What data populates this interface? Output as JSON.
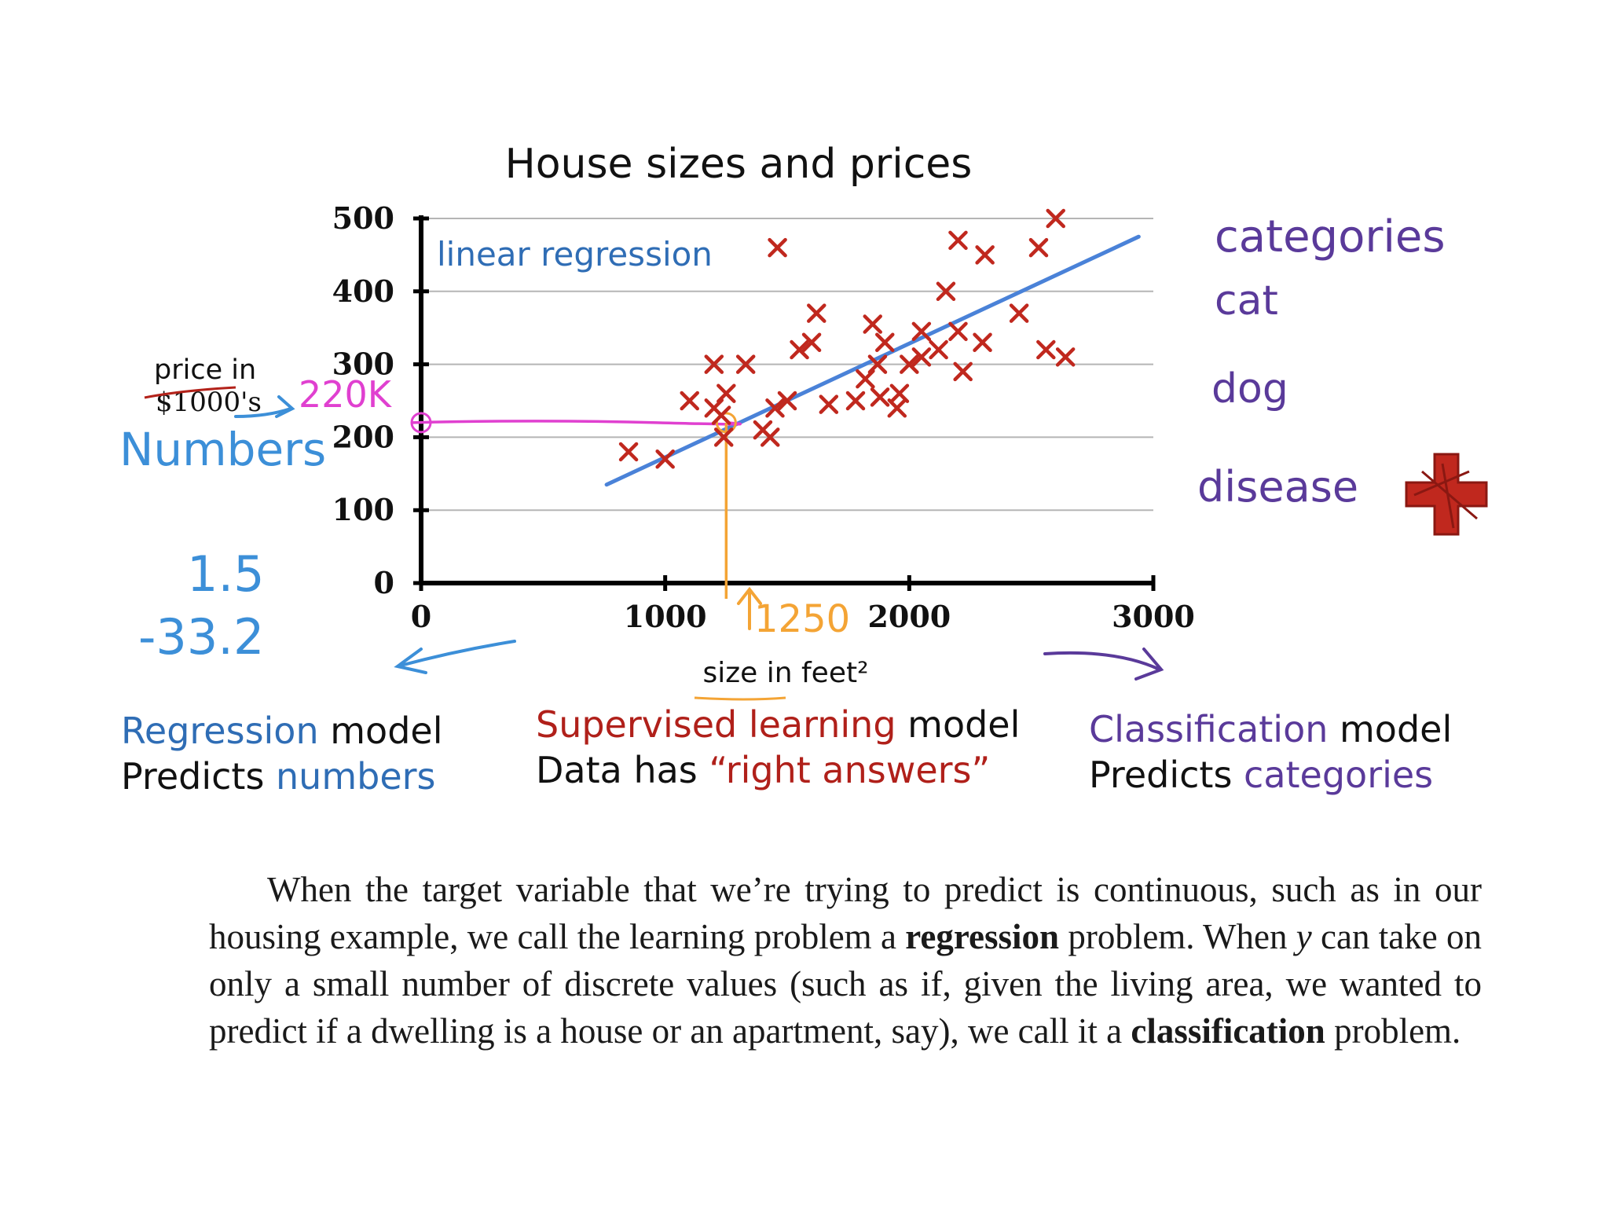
{
  "chart_data": {
    "type": "scatter",
    "title": "House sizes and prices",
    "xlabel": "size in feet²",
    "ylabel": "price in $1000's",
    "xlim": [
      0,
      3000
    ],
    "ylim": [
      0,
      500
    ],
    "x_ticks": [
      0,
      1000,
      2000,
      3000
    ],
    "y_ticks": [
      0,
      100,
      200,
      300,
      400,
      500
    ],
    "grid": "horizontal",
    "series": [
      {
        "name": "houses",
        "marker": "x",
        "color": "#c0281e",
        "points": [
          [
            850,
            180
          ],
          [
            1000,
            170
          ],
          [
            1100,
            250
          ],
          [
            1200,
            240
          ],
          [
            1250,
            260
          ],
          [
            1230,
            230
          ],
          [
            1240,
            200
          ],
          [
            1200,
            300
          ],
          [
            1330,
            300
          ],
          [
            1400,
            210
          ],
          [
            1430,
            200
          ],
          [
            1450,
            240
          ],
          [
            1500,
            250
          ],
          [
            1550,
            320
          ],
          [
            1600,
            330
          ],
          [
            1620,
            370
          ],
          [
            1670,
            245
          ],
          [
            1780,
            250
          ],
          [
            1820,
            280
          ],
          [
            1850,
            355
          ],
          [
            1870,
            300
          ],
          [
            1900,
            330
          ],
          [
            1880,
            255
          ],
          [
            1950,
            240
          ],
          [
            1960,
            260
          ],
          [
            2000,
            300
          ],
          [
            2050,
            310
          ],
          [
            2050,
            345
          ],
          [
            2120,
            320
          ],
          [
            2150,
            400
          ],
          [
            2200,
            345
          ],
          [
            2220,
            290
          ],
          [
            2300,
            330
          ],
          [
            2450,
            370
          ],
          [
            2200,
            470
          ],
          [
            2310,
            450
          ],
          [
            2530,
            460
          ],
          [
            2600,
            500
          ],
          [
            2560,
            320
          ],
          [
            2640,
            310
          ],
          [
            1460,
            460
          ]
        ]
      },
      {
        "name": "linear regression",
        "type": "line",
        "color": "#4a82d8",
        "points": [
          [
            760,
            135
          ],
          [
            2940,
            475
          ]
        ]
      }
    ],
    "prediction": {
      "x": 1250,
      "y": 220
    }
  },
  "annotations": {
    "linear_regression": "linear regression",
    "price_label": "price in",
    "price_unit": "$1000's",
    "value_220k": "220K",
    "numbers": "Numbers",
    "num_a": "1.5",
    "num_b": "-33.2",
    "x_1250": "1250",
    "categories": "categories",
    "cat": "cat",
    "dog": "dog",
    "disease": "disease"
  },
  "captions": {
    "regression_word": "Regression",
    "model_word": "model",
    "predicts_word": "Predicts",
    "numbers_word": "numbers",
    "supervised_word": "Supervised learning",
    "data_has": "Data has",
    "right_answers": "“right answers”",
    "classification_word": "Classification",
    "categories_word": "categories"
  },
  "paragraph": {
    "p1": "When the target variable that we’re trying to predict is continuous, such as in our housing example, we call the learning problem a ",
    "regression": "regression",
    "p2": " problem. When ",
    "y": "y",
    "p3": " can take on only a small number of discrete values (such as if, given the living area, we wanted to predict if a dwelling is a house or an apartment, say), we call it a ",
    "classification": "classification",
    "p4": " problem."
  },
  "colors": {
    "axis": "#000000",
    "grid": "#b5b5b5",
    "marker": "#c0281e",
    "regression_line": "#4a82d8",
    "blue_text": "#2f6db5",
    "pen_blue": "#3c8fd8",
    "magenta": "#e040d0",
    "orange": "#f4a435",
    "purple": "#5a3a9a",
    "red_text": "#b0201a",
    "dark_red": "#b3221a"
  }
}
